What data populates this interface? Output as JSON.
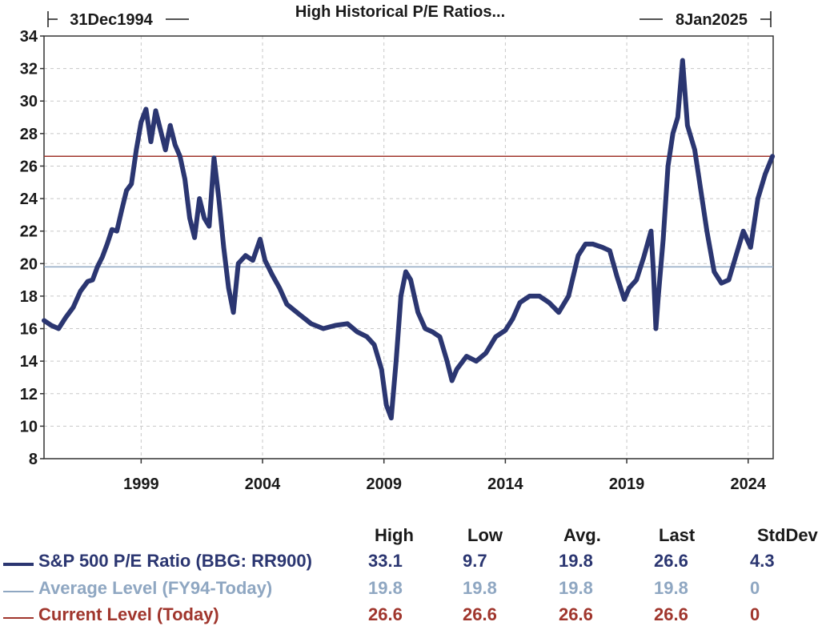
{
  "chart_data": {
    "type": "line",
    "title": "High Historical P/E Ratios...",
    "start_label": "31Dec1994",
    "end_label": "8Jan2025",
    "xlim": [
      1995.0,
      2025.03
    ],
    "ylim": [
      8,
      34
    ],
    "yticks": [
      8,
      10,
      12,
      14,
      16,
      18,
      20,
      22,
      24,
      26,
      28,
      30,
      32,
      34
    ],
    "xticks": [
      1999,
      2004,
      2009,
      2014,
      2019,
      2024
    ],
    "grid": true,
    "legend_position": "bottom",
    "series": [
      {
        "name": "S&P 500 P/E Ratio (BBG: RR900)",
        "color": "#2b3671",
        "x": [
          1995.0,
          1995.3,
          1995.6,
          1995.9,
          1996.2,
          1996.5,
          1996.8,
          1997.0,
          1997.2,
          1997.4,
          1997.6,
          1997.8,
          1998.0,
          1998.2,
          1998.4,
          1998.6,
          1998.8,
          1999.0,
          1999.2,
          1999.4,
          1999.6,
          1999.8,
          2000.0,
          2000.2,
          2000.4,
          2000.6,
          2000.8,
          2001.0,
          2001.2,
          2001.4,
          2001.6,
          2001.8,
          2002.0,
          2002.2,
          2002.4,
          2002.6,
          2002.8,
          2003.0,
          2003.3,
          2003.6,
          2003.9,
          2004.1,
          2004.4,
          2004.7,
          2005.0,
          2005.5,
          2006.0,
          2006.5,
          2007.0,
          2007.5,
          2007.9,
          2008.3,
          2008.6,
          2008.9,
          2009.1,
          2009.3,
          2009.5,
          2009.7,
          2009.9,
          2010.1,
          2010.4,
          2010.7,
          2011.0,
          2011.3,
          2011.6,
          2011.8,
          2012.0,
          2012.4,
          2012.8,
          2013.2,
          2013.6,
          2014.0,
          2014.3,
          2014.6,
          2015.0,
          2015.4,
          2015.8,
          2016.2,
          2016.6,
          2017.0,
          2017.3,
          2017.6,
          2018.0,
          2018.3,
          2018.6,
          2018.9,
          2019.1,
          2019.4,
          2019.7,
          2020.0,
          2020.1,
          2020.2,
          2020.3,
          2020.5,
          2020.7,
          2020.9,
          2021.1,
          2021.3,
          2021.5,
          2021.8,
          2022.0,
          2022.3,
          2022.6,
          2022.9,
          2023.2,
          2023.5,
          2023.8,
          2024.1,
          2024.4,
          2024.7,
          2025.0
        ],
        "values": [
          16.5,
          16.2,
          16.0,
          16.7,
          17.3,
          18.3,
          18.9,
          19.0,
          19.8,
          20.4,
          21.2,
          22.1,
          22.0,
          23.3,
          24.5,
          24.9,
          27.0,
          28.7,
          29.5,
          27.5,
          29.4,
          28.2,
          27.0,
          28.5,
          27.3,
          26.6,
          25.2,
          22.8,
          21.6,
          24.0,
          22.8,
          22.3,
          26.5,
          24.0,
          21.0,
          18.5,
          17.0,
          20.0,
          20.5,
          20.2,
          21.5,
          20.2,
          19.3,
          18.5,
          17.5,
          16.9,
          16.3,
          16.0,
          16.2,
          16.3,
          15.8,
          15.5,
          15.0,
          13.5,
          11.3,
          10.5,
          14.0,
          18.0,
          19.5,
          19.0,
          17.0,
          16.0,
          15.8,
          15.5,
          14.0,
          12.8,
          13.5,
          14.3,
          14.0,
          14.5,
          15.5,
          15.9,
          16.6,
          17.6,
          18.0,
          18.0,
          17.6,
          17.0,
          18.0,
          20.5,
          21.2,
          21.2,
          21.0,
          20.8,
          19.2,
          17.8,
          18.5,
          19.0,
          20.4,
          22.0,
          19.5,
          16.0,
          18.0,
          21.5,
          26.0,
          28.0,
          29.0,
          32.5,
          28.5,
          27.0,
          25.0,
          22.0,
          19.5,
          18.8,
          19.0,
          20.5,
          22.0,
          21.0,
          24.0,
          25.5,
          26.6
        ]
      },
      {
        "name": "Average Level (FY94-Today)",
        "color": "#8fa7c2",
        "constant": 19.8
      },
      {
        "name": "Current Level (Today)",
        "color": "#a0362d",
        "constant": 26.6
      }
    ]
  },
  "legend": {
    "headers": [
      "High",
      "Low",
      "Avg.",
      "Last",
      "StdDev"
    ],
    "rows": [
      {
        "label": "S&P 500 P/E Ratio (BBG: RR900)",
        "color": "#2b3671",
        "stats": [
          "33.1",
          "9.7",
          "19.8",
          "26.6",
          "4.3"
        ]
      },
      {
        "label": "Average Level (FY94-Today)",
        "color": "#8fa7c2",
        "stats": [
          "19.8",
          "19.8",
          "19.8",
          "19.8",
          "0"
        ]
      },
      {
        "label": "Current Level (Today)",
        "color": "#a0362d",
        "stats": [
          "26.6",
          "26.6",
          "26.6",
          "26.6",
          "0"
        ]
      }
    ]
  }
}
